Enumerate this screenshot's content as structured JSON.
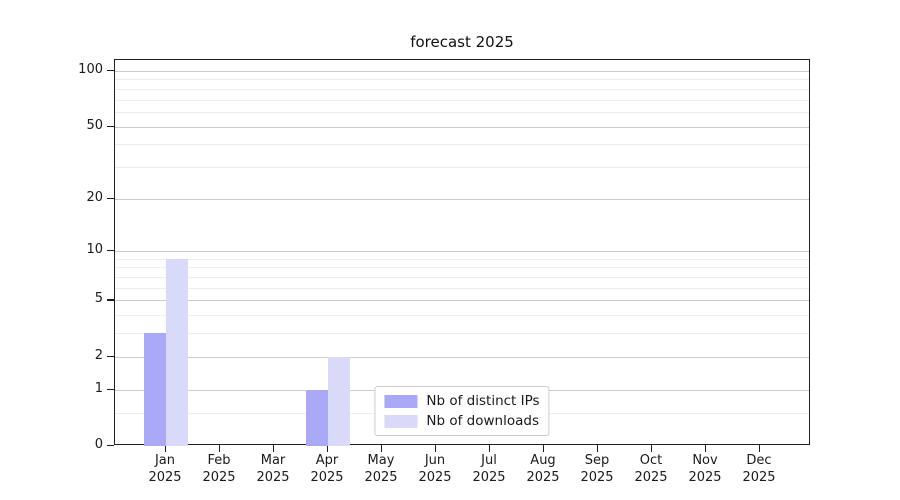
{
  "chart_data": {
    "type": "bar",
    "title": "forecast 2025",
    "categories": [
      "Jan",
      "Feb",
      "Mar",
      "Apr",
      "May",
      "Jun",
      "Jul",
      "Aug",
      "Sep",
      "Oct",
      "Nov",
      "Dec"
    ],
    "category_year": "2025",
    "series": [
      {
        "name": "Nb of distinct IPs",
        "color": "#a9a9f7",
        "values": [
          3,
          0,
          0,
          1,
          0,
          0,
          0,
          0,
          0,
          0,
          0,
          0
        ]
      },
      {
        "name": "Nb of downloads",
        "color": "#d9d9f9",
        "values": [
          9,
          0,
          0,
          2,
          0,
          0,
          0,
          0,
          0,
          0,
          0,
          0
        ]
      }
    ],
    "yscale": "log1p",
    "ylim": [
      0,
      113
    ],
    "yticks": [
      0,
      1,
      2,
      5,
      10,
      20,
      50,
      100
    ],
    "yminorticks": [
      0.5,
      3,
      4,
      6,
      7,
      8,
      9,
      30,
      40,
      60,
      70,
      80,
      90
    ],
    "xlabel": "",
    "ylabel": "",
    "grid": "horizontal",
    "legend_position": "lower center inside plot"
  }
}
